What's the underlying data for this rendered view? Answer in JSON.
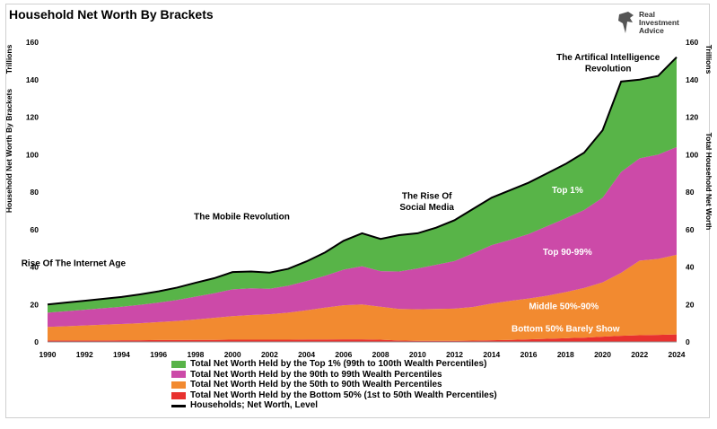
{
  "chart_data": {
    "type": "area",
    "title": "Household Net Worth By Brackets",
    "ylabel_left": "Household Net Worth By Brackets",
    "ylabel_right": "Total Household Net Worth",
    "yunit_left": "Trillions",
    "yunit_right": "Trillions",
    "xlim": [
      1990,
      2024
    ],
    "ylim": [
      0,
      160
    ],
    "xticks": [
      "1990",
      "1992",
      "1994",
      "1996",
      "1998",
      "2000",
      "2002",
      "2004",
      "2006",
      "2008",
      "2010",
      "2012",
      "2014",
      "2016",
      "2018",
      "2020",
      "2022",
      "2024"
    ],
    "yticks": [
      "0",
      "20",
      "40",
      "60",
      "80",
      "100",
      "120",
      "140",
      "160"
    ],
    "grid": false,
    "stacked": true,
    "x": [
      1990,
      1991,
      1992,
      1993,
      1994,
      1995,
      1996,
      1997,
      1998,
      1999,
      2000,
      2001,
      2002,
      2003,
      2004,
      2005,
      2006,
      2007,
      2008,
      2009,
      2010,
      2011,
      2012,
      2013,
      2014,
      2015,
      2016,
      2017,
      2018,
      2019,
      2020,
      2021,
      2022,
      2023,
      2024
    ],
    "series": [
      {
        "name": "Total Net Worth Held by the Bottom 50% (1st to 50th Wealth Percentiles)",
        "color": "#e8312f",
        "values": [
          0.8,
          0.8,
          0.8,
          0.8,
          0.9,
          0.9,
          1.0,
          1.0,
          1.1,
          1.1,
          1.2,
          1.2,
          1.2,
          1.2,
          1.3,
          1.3,
          1.4,
          1.4,
          1.2,
          0.8,
          0.6,
          0.6,
          0.6,
          0.7,
          0.9,
          1.1,
          1.4,
          1.7,
          2.0,
          2.3,
          2.8,
          3.3,
          3.6,
          3.8,
          4.0
        ]
      },
      {
        "name": "Total Net Worth Held by the 50th to 90th Wealth Percentiles",
        "color": "#f28a30",
        "values": [
          7.2,
          7.6,
          8.0,
          8.4,
          8.7,
          9.1,
          9.6,
          10.2,
          10.9,
          11.8,
          12.6,
          13.2,
          13.6,
          14.4,
          15.6,
          17.0,
          18.2,
          18.6,
          17.6,
          16.8,
          16.8,
          17.0,
          17.2,
          18.0,
          19.6,
          20.8,
          21.8,
          23.0,
          24.6,
          26.5,
          29.0,
          33.6,
          39.8,
          40.5,
          42.5
        ]
      },
      {
        "name": "Total Net Worth Held by the 90th to 99th Wealth Percentiles",
        "color": "#cc4aa8",
        "values": [
          7.6,
          8.0,
          8.4,
          8.8,
          9.2,
          9.8,
          10.4,
          11.2,
          12.2,
          13.1,
          14.3,
          14.2,
          13.6,
          14.4,
          15.6,
          17.0,
          19.0,
          20.4,
          19.0,
          20.0,
          21.8,
          23.6,
          25.4,
          28.6,
          31.2,
          32.6,
          34.4,
          37.1,
          39.4,
          41.6,
          45.2,
          53.8,
          54.6,
          55.7,
          57.5
        ]
      },
      {
        "name": "Total Net Worth Held by the Top 1% (99th to 100th Wealth Percentiles)",
        "color": "#58b448",
        "values": [
          4.4,
          4.6,
          4.8,
          5.0,
          5.2,
          5.6,
          6.0,
          6.6,
          7.4,
          8.0,
          9.2,
          9.0,
          8.6,
          9.0,
          10.5,
          12.5,
          15.4,
          17.6,
          17.2,
          19.4,
          18.8,
          19.8,
          21.8,
          23.7,
          25.3,
          26.5,
          27.4,
          28.2,
          29.0,
          30.6,
          36.0,
          48.3,
          42.0,
          42.0,
          48.0
        ]
      }
    ],
    "total": {
      "name": "Households; Net Worth, Level",
      "color": "#000000",
      "values": [
        20.0,
        21.0,
        22.0,
        23.0,
        24.0,
        25.4,
        27.0,
        29.0,
        31.6,
        34.0,
        37.3,
        37.6,
        37.0,
        39.0,
        43.0,
        47.8,
        54.0,
        58.0,
        55.0,
        57.0,
        58.0,
        61.0,
        65.0,
        71.0,
        77.0,
        81.0,
        85.0,
        90.0,
        95.0,
        101.0,
        113.0,
        139.0,
        140.0,
        142.0,
        152.0
      ]
    },
    "annotations": [
      {
        "text": "Rise Of The Internet Age",
        "x": 1991.4,
        "y": 40.5
      },
      {
        "text": "The Mobile Revolution",
        "x": 2000.5,
        "y": 65.5
      },
      {
        "text": "The Rise Of",
        "x": 2010.5,
        "y": 76.5
      },
      {
        "text": "Social Media",
        "x": 2010.5,
        "y": 70.5
      },
      {
        "text": "The Artifical Intelligence",
        "x": 2020.3,
        "y": 150.5
      },
      {
        "text": "Revolution",
        "x": 2020.3,
        "y": 144.5
      }
    ],
    "inner_labels": [
      {
        "text": "Top 1%",
        "x": 2018.1,
        "y": 79.5
      },
      {
        "text": "Top 90-99%",
        "x": 2018.1,
        "y": 46.5
      },
      {
        "text": "Middle 50%-90%",
        "x": 2017.9,
        "y": 17.5
      },
      {
        "text": "Bottom 50% Barely Show",
        "x": 2018.0,
        "y": 5.5
      }
    ],
    "legend_position": "bottom"
  },
  "brand": {
    "line1": "Real",
    "line2": "Investment",
    "line3": "Advice"
  }
}
